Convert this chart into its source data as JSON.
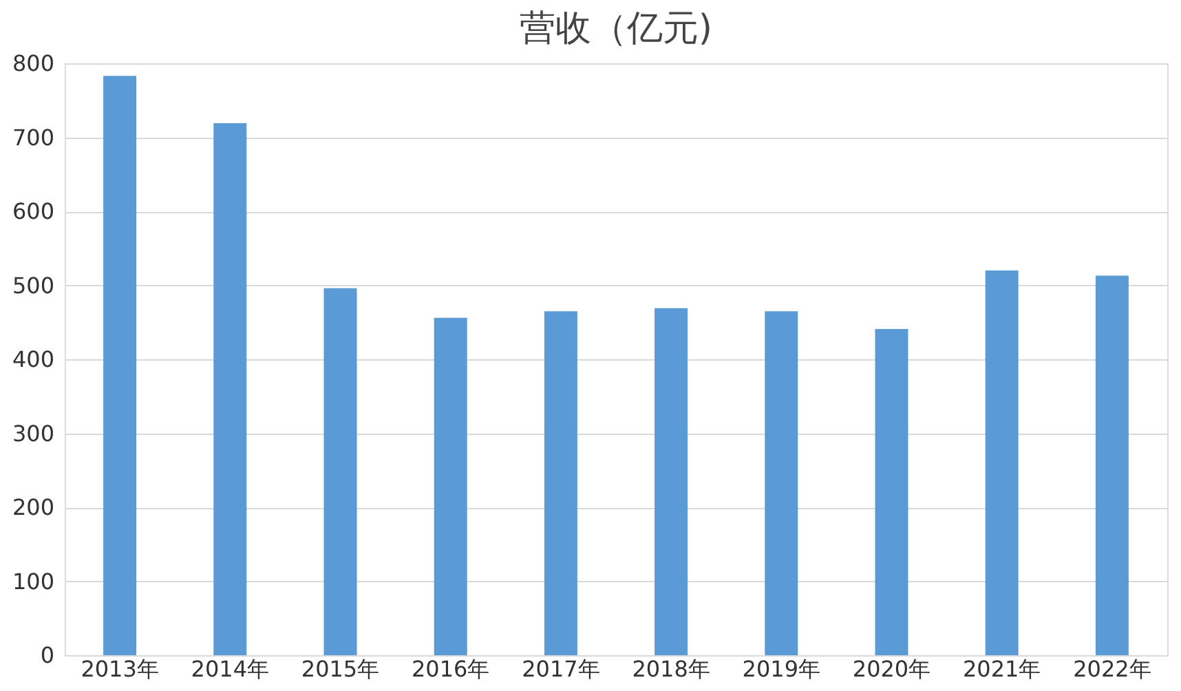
{
  "chart_data": {
    "type": "bar",
    "title": "营收（亿元)",
    "categories": [
      "2013年",
      "2014年",
      "2015年",
      "2016年",
      "2017年",
      "2018年",
      "2019年",
      "2020年",
      "2021年",
      "2022年"
    ],
    "series": [
      {
        "color": "#5b9bd5",
        "values": [
          783,
          719,
          496,
          456,
          465,
          469,
          465,
          441,
          520,
          513
        ]
      }
    ],
    "ylim": [
      0,
      800
    ],
    "yticks": [
      0,
      100,
      200,
      300,
      400,
      500,
      600,
      700,
      800
    ],
    "grid": "y"
  }
}
